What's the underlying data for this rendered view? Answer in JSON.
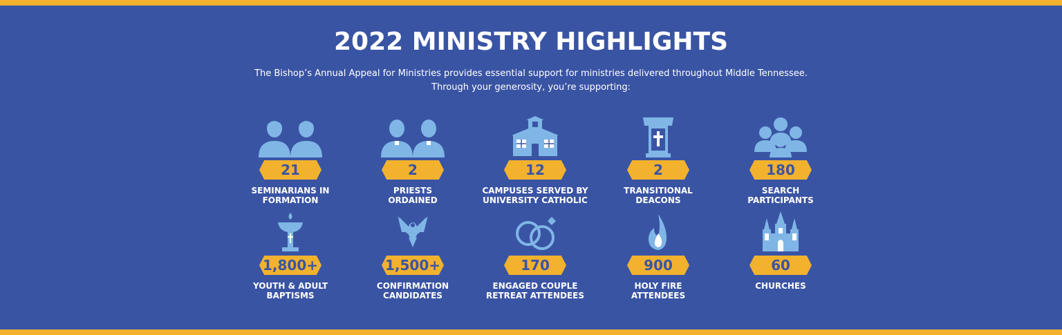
{
  "title": "2022 MINISTRY HIGHLIGHTS",
  "subtitle_line1": "The Bishop’s Annual Appeal for Ministries provides essential support for ministries delivered throughout Middle Tennessee.",
  "subtitle_line2": "Through your generosity, you’re supporting:",
  "colors": {
    "background": "#3a54a4",
    "accent": "#f3b22e",
    "icon": "#7fb6e6",
    "text": "#ffffff"
  },
  "stats": [
    {
      "value": "21",
      "label1": "SEMINARIANS IN",
      "label2": "FORMATION",
      "icon": "two-people-icon"
    },
    {
      "value": "2",
      "label1": "PRIESTS",
      "label2": "ORDAINED",
      "icon": "two-priests-icon"
    },
    {
      "value": "12",
      "label1": "CAMPUSES SERVED BY",
      "label2": "UNIVERSITY CATHOLIC",
      "icon": "school-building-icon"
    },
    {
      "value": "2",
      "label1": "TRANSITIONAL",
      "label2": "DEACONS",
      "icon": "pulpit-cross-icon"
    },
    {
      "value": "180",
      "label1": "SEARCH",
      "label2": "PARTICIPANTS",
      "icon": "group-people-icon"
    },
    {
      "value": "1,800+",
      "label1": "YOUTH & ADULT",
      "label2": "BAPTISMS",
      "icon": "baptismal-font-icon"
    },
    {
      "value": "1,500+",
      "label1": "CONFIRMATION",
      "label2": "CANDIDATES",
      "icon": "dove-icon"
    },
    {
      "value": "170",
      "label1": "ENGAGED COUPLE",
      "label2": "RETREAT ATTENDEES",
      "icon": "rings-icon"
    },
    {
      "value": "900",
      "label1": "HOLY FIRE",
      "label2": "ATTENDEES",
      "icon": "flame-icon"
    },
    {
      "value": "60",
      "label1": "CHURCHES",
      "label2": "",
      "icon": "cathedral-icon"
    }
  ]
}
